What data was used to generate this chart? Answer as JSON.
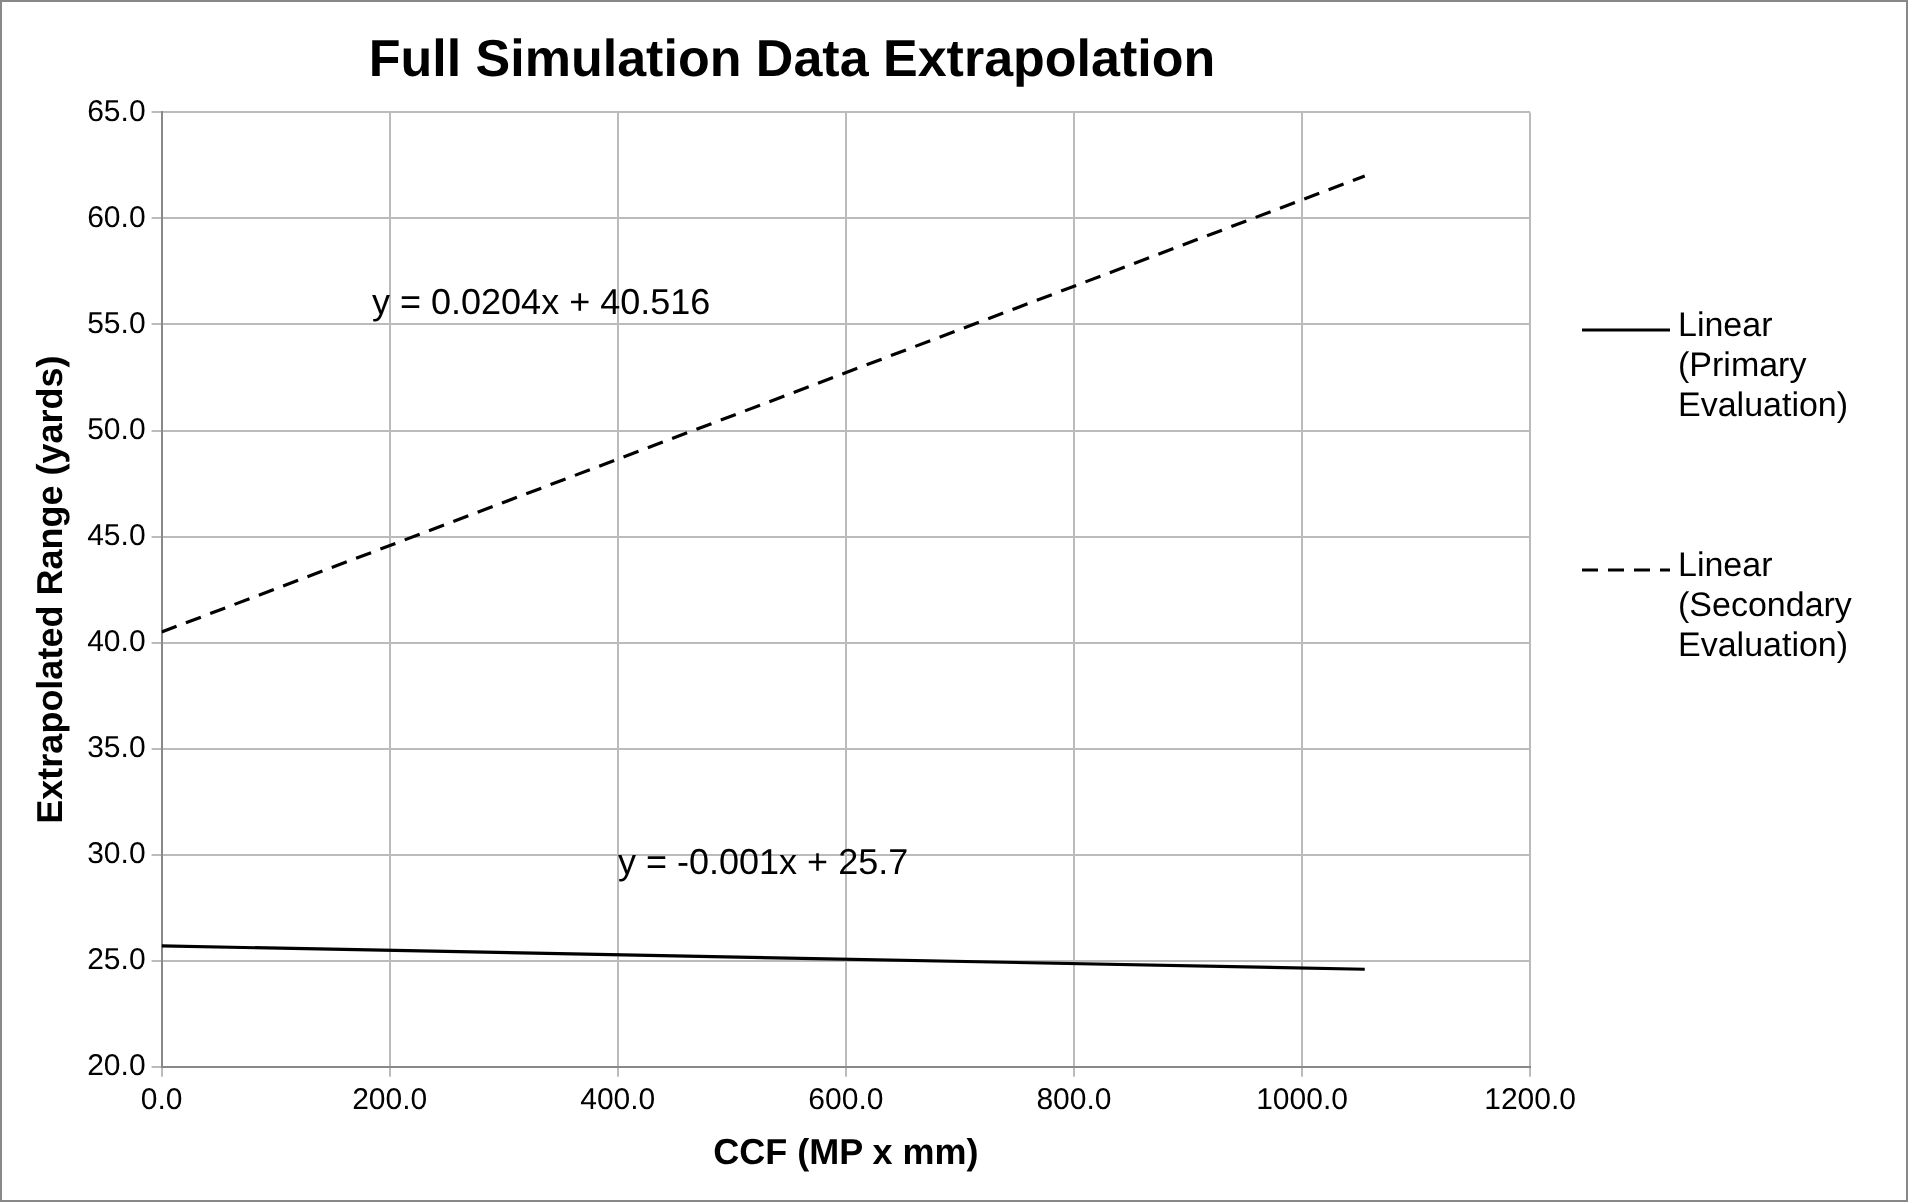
{
  "chart_data": {
    "type": "line",
    "title": "Full Simulation Data Extrapolation",
    "xlabel": "CCF (MP x mm)",
    "ylabel": "Extrapolated Range (yards)",
    "series": [
      {
        "name": "Linear (Primary Evaluation)",
        "color": "#000000",
        "line_style": "solid",
        "values": [
          25.7,
          24.6
        ]
      },
      {
        "name": "Linear (Secondary Evaluation)",
        "color": "#000000",
        "line_style": "dashed",
        "values": [
          40.5,
          62.0
        ]
      }
    ],
    "x": [
      0,
      1055
    ],
    "xlim": [
      0,
      1200
    ],
    "xticks": [
      {
        "value": 0,
        "label": "0.0"
      },
      {
        "value": 200,
        "label": "200.0"
      },
      {
        "value": 400,
        "label": "400.0"
      },
      {
        "value": 600,
        "label": "600.0"
      },
      {
        "value": 800,
        "label": "800.0"
      },
      {
        "value": 1000,
        "label": "1000.0"
      },
      {
        "value": 1200,
        "label": "1200.0"
      }
    ],
    "ylim": [
      20,
      65
    ],
    "yticks": [
      {
        "value": 20,
        "label": "20.0"
      },
      {
        "value": 25,
        "label": "25.0"
      },
      {
        "value": 30,
        "label": "30.0"
      },
      {
        "value": 35,
        "label": "35.0"
      },
      {
        "value": 40,
        "label": "40.0"
      },
      {
        "value": 45,
        "label": "45.0"
      },
      {
        "value": 50,
        "label": "50.0"
      },
      {
        "value": 55,
        "label": "55.0"
      },
      {
        "value": 60,
        "label": "60.0"
      },
      {
        "value": 65,
        "label": "65.0"
      }
    ],
    "annotations": [
      "y = 0.0204x + 40.516",
      "y = -0.001x + 25.7"
    ],
    "grid": true,
    "legend": "right",
    "marker": "none"
  }
}
